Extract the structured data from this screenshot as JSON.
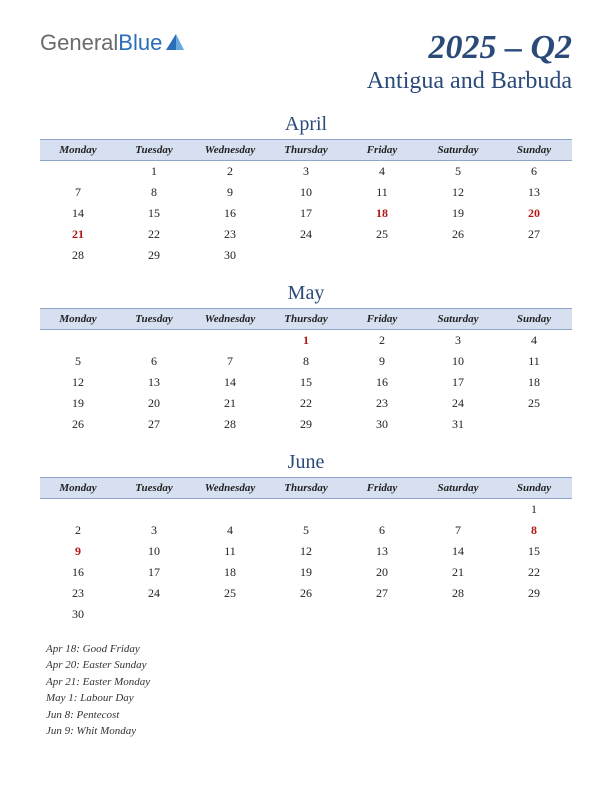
{
  "logo": {
    "part1": "General",
    "part2": "Blue"
  },
  "title": "2025 – Q2",
  "subtitle": "Antigua and Barbuda",
  "day_headers": [
    "Monday",
    "Tuesday",
    "Wednesday",
    "Thursday",
    "Friday",
    "Saturday",
    "Sunday"
  ],
  "months": [
    {
      "name": "April",
      "rows": [
        [
          "",
          "1",
          "2",
          "3",
          "4",
          "5",
          "6"
        ],
        [
          "7",
          "8",
          "9",
          "10",
          "11",
          "12",
          "13"
        ],
        [
          "14",
          "15",
          "16",
          "17",
          "18",
          "19",
          "20"
        ],
        [
          "21",
          "22",
          "23",
          "24",
          "25",
          "26",
          "27"
        ],
        [
          "28",
          "29",
          "30",
          "",
          "",
          "",
          ""
        ]
      ],
      "holidays": [
        "18",
        "20",
        "21"
      ]
    },
    {
      "name": "May",
      "rows": [
        [
          "",
          "",
          "",
          "1",
          "2",
          "3",
          "4"
        ],
        [
          "5",
          "6",
          "7",
          "8",
          "9",
          "10",
          "11"
        ],
        [
          "12",
          "13",
          "14",
          "15",
          "16",
          "17",
          "18"
        ],
        [
          "19",
          "20",
          "21",
          "22",
          "23",
          "24",
          "25"
        ],
        [
          "26",
          "27",
          "28",
          "29",
          "30",
          "31",
          ""
        ]
      ],
      "holidays": [
        "1"
      ]
    },
    {
      "name": "June",
      "rows": [
        [
          "",
          "",
          "",
          "",
          "",
          "",
          "1"
        ],
        [
          "2",
          "3",
          "4",
          "5",
          "6",
          "7",
          "8"
        ],
        [
          "9",
          "10",
          "11",
          "12",
          "13",
          "14",
          "15"
        ],
        [
          "16",
          "17",
          "18",
          "19",
          "20",
          "21",
          "22"
        ],
        [
          "23",
          "24",
          "25",
          "26",
          "27",
          "28",
          "29"
        ],
        [
          "30",
          "",
          "",
          "",
          "",
          "",
          ""
        ]
      ],
      "holidays": [
        "8",
        "9"
      ]
    }
  ],
  "holiday_list": [
    "Apr 18: Good Friday",
    "Apr 20: Easter Sunday",
    "Apr 21: Easter Monday",
    "May 1: Labour Day",
    "Jun 8: Pentecost",
    "Jun 9: Whit Monday"
  ],
  "colors": {
    "header_bg": "#d6e0f0",
    "header_border": "#8fa6c8",
    "title_color": "#2a4a7a",
    "holiday_color": "#b01818",
    "logo_gray": "#6b6b6b",
    "logo_blue": "#2a6db8"
  }
}
